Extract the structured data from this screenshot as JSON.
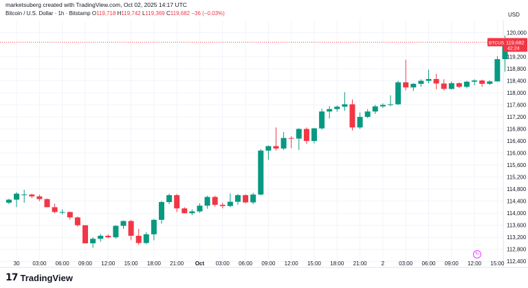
{
  "caption": "marketsuberg created with TradingView.com, Oct 02, 2025 14:17 UTC",
  "legend": {
    "title": "Bitcoin / U.S. Dollar · 1h · Bitstamp",
    "o_label": "O",
    "o_value": "119,718",
    "h_label": "H",
    "h_value": "119,742",
    "l_label": "L",
    "l_value": "119,369",
    "c_label": "C",
    "c_value": "119,682",
    "change": "−36 (−0.03%)"
  },
  "currency": "USD",
  "price_tag": {
    "symbol": "BTCUSD",
    "price": "119,682",
    "countdown": "42:24"
  },
  "colors": {
    "up": "#089981",
    "down": "#f23645",
    "grid": "#f0f3fa",
    "axis_text": "#131722",
    "last_price_line": "#f23645"
  },
  "logo_text": "TradingView",
  "chart_data": {
    "type": "candlestick",
    "title": "Bitcoin / U.S. Dollar · 1h · Bitstamp",
    "ylim": [
      112200,
      120400
    ],
    "y_ticks": [
      112400,
      112800,
      113200,
      113600,
      114000,
      114400,
      114800,
      115200,
      115600,
      116000,
      116400,
      116800,
      117200,
      117600,
      118000,
      118400,
      118800,
      119200,
      120000
    ],
    "y_tick_labels": [
      "112,400",
      "112,800",
      "113,200",
      "113,600",
      "114,000",
      "114,400",
      "114,800",
      "115,200",
      "115,600",
      "116,000",
      "116,400",
      "116,800",
      "117,200",
      "117,600",
      "118,000",
      "118,400",
      "118,800",
      "119,200",
      "120,000"
    ],
    "x_tick_labels": [
      {
        "index": 1,
        "label": "30"
      },
      {
        "index": 4,
        "label": "03:00"
      },
      {
        "index": 7,
        "label": "06:00"
      },
      {
        "index": 10,
        "label": "09:00"
      },
      {
        "index": 13,
        "label": "12:00"
      },
      {
        "index": 16,
        "label": "15:00"
      },
      {
        "index": 19,
        "label": "18:00"
      },
      {
        "index": 22,
        "label": "21:00"
      },
      {
        "index": 25,
        "label": "Oct"
      },
      {
        "index": 28,
        "label": "03:00"
      },
      {
        "index": 31,
        "label": "06:00"
      },
      {
        "index": 34,
        "label": "09:00"
      },
      {
        "index": 37,
        "label": "12:00"
      },
      {
        "index": 40,
        "label": "15:00"
      },
      {
        "index": 43,
        "label": "18:00"
      },
      {
        "index": 46,
        "label": "21:00"
      },
      {
        "index": 49,
        "label": "2"
      },
      {
        "index": 52,
        "label": "03:00"
      },
      {
        "index": 55,
        "label": "06:00"
      },
      {
        "index": 58,
        "label": "09:00"
      },
      {
        "index": 61,
        "label": "12:00"
      },
      {
        "index": 64,
        "label": "15:00"
      }
    ],
    "last_price": 119682,
    "candles": [
      {
        "o": 114350,
        "h": 114480,
        "l": 114300,
        "c": 114450
      },
      {
        "o": 114450,
        "h": 114700,
        "l": 114200,
        "c": 114650
      },
      {
        "o": 114620,
        "h": 114780,
        "l": 114350,
        "c": 114620
      },
      {
        "o": 114620,
        "h": 114650,
        "l": 114500,
        "c": 114560
      },
      {
        "o": 114560,
        "h": 114620,
        "l": 114400,
        "c": 114470
      },
      {
        "o": 114470,
        "h": 114490,
        "l": 114200,
        "c": 114200
      },
      {
        "o": 114200,
        "h": 114320,
        "l": 114000,
        "c": 114040
      },
      {
        "o": 114040,
        "h": 114130,
        "l": 113960,
        "c": 114040
      },
      {
        "o": 114040,
        "h": 114050,
        "l": 113780,
        "c": 113860
      },
      {
        "o": 113860,
        "h": 113890,
        "l": 113550,
        "c": 113600
      },
      {
        "o": 113600,
        "h": 113600,
        "l": 113000,
        "c": 113000
      },
      {
        "o": 113000,
        "h": 113200,
        "l": 112850,
        "c": 113150
      },
      {
        "o": 113150,
        "h": 113310,
        "l": 113050,
        "c": 113250
      },
      {
        "o": 113250,
        "h": 113300,
        "l": 113170,
        "c": 113200
      },
      {
        "o": 113200,
        "h": 113600,
        "l": 113150,
        "c": 113580
      },
      {
        "o": 113580,
        "h": 113760,
        "l": 113480,
        "c": 113740
      },
      {
        "o": 113740,
        "h": 113780,
        "l": 113100,
        "c": 113250
      },
      {
        "o": 113250,
        "h": 113480,
        "l": 112950,
        "c": 113010
      },
      {
        "o": 113010,
        "h": 113370,
        "l": 112970,
        "c": 113300
      },
      {
        "o": 113300,
        "h": 113810,
        "l": 113100,
        "c": 113780
      },
      {
        "o": 113780,
        "h": 114410,
        "l": 113650,
        "c": 114370
      },
      {
        "o": 114370,
        "h": 114650,
        "l": 114300,
        "c": 114600
      },
      {
        "o": 114600,
        "h": 114640,
        "l": 114040,
        "c": 114160
      },
      {
        "o": 114160,
        "h": 114200,
        "l": 113990,
        "c": 114000
      },
      {
        "o": 114000,
        "h": 114130,
        "l": 113930,
        "c": 114060
      },
      {
        "o": 114060,
        "h": 114330,
        "l": 114020,
        "c": 114250
      },
      {
        "o": 114250,
        "h": 114580,
        "l": 114150,
        "c": 114540
      },
      {
        "o": 114540,
        "h": 114580,
        "l": 114220,
        "c": 114280
      },
      {
        "o": 114280,
        "h": 114350,
        "l": 114160,
        "c": 114240
      },
      {
        "o": 114240,
        "h": 114660,
        "l": 114200,
        "c": 114380
      },
      {
        "o": 114380,
        "h": 114640,
        "l": 114280,
        "c": 114600
      },
      {
        "o": 114600,
        "h": 114630,
        "l": 114320,
        "c": 114360
      },
      {
        "o": 114360,
        "h": 114680,
        "l": 114300,
        "c": 114620
      },
      {
        "o": 114620,
        "h": 116130,
        "l": 114590,
        "c": 116080
      },
      {
        "o": 116080,
        "h": 116250,
        "l": 115780,
        "c": 116230
      },
      {
        "o": 116230,
        "h": 116850,
        "l": 116080,
        "c": 116150
      },
      {
        "o": 116150,
        "h": 116700,
        "l": 116100,
        "c": 116500
      },
      {
        "o": 116500,
        "h": 116560,
        "l": 116160,
        "c": 116480
      },
      {
        "o": 116480,
        "h": 116830,
        "l": 116100,
        "c": 116800
      },
      {
        "o": 116800,
        "h": 116850,
        "l": 116300,
        "c": 116400
      },
      {
        "o": 116400,
        "h": 116840,
        "l": 116320,
        "c": 116820
      },
      {
        "o": 116820,
        "h": 117470,
        "l": 116780,
        "c": 117380
      },
      {
        "o": 117380,
        "h": 117560,
        "l": 117150,
        "c": 117460
      },
      {
        "o": 117460,
        "h": 117580,
        "l": 117370,
        "c": 117540
      },
      {
        "o": 117540,
        "h": 118020,
        "l": 117400,
        "c": 117620
      },
      {
        "o": 117620,
        "h": 117780,
        "l": 116750,
        "c": 116850
      },
      {
        "o": 116850,
        "h": 117350,
        "l": 116800,
        "c": 117200
      },
      {
        "o": 117200,
        "h": 117460,
        "l": 117160,
        "c": 117380
      },
      {
        "o": 117380,
        "h": 117600,
        "l": 117300,
        "c": 117550
      },
      {
        "o": 117550,
        "h": 117650,
        "l": 117500,
        "c": 117600
      },
      {
        "o": 117600,
        "h": 117920,
        "l": 117550,
        "c": 117620
      },
      {
        "o": 117620,
        "h": 118400,
        "l": 117600,
        "c": 118350
      },
      {
        "o": 118350,
        "h": 119100,
        "l": 118080,
        "c": 118180
      },
      {
        "o": 118180,
        "h": 118320,
        "l": 118060,
        "c": 118300
      },
      {
        "o": 118300,
        "h": 118450,
        "l": 118200,
        "c": 118400
      },
      {
        "o": 118400,
        "h": 118770,
        "l": 118320,
        "c": 118460
      },
      {
        "o": 118460,
        "h": 118630,
        "l": 118120,
        "c": 118310
      },
      {
        "o": 118310,
        "h": 118450,
        "l": 118080,
        "c": 118130
      },
      {
        "o": 118130,
        "h": 118380,
        "l": 118110,
        "c": 118320
      },
      {
        "o": 118320,
        "h": 118350,
        "l": 118160,
        "c": 118200
      },
      {
        "o": 118200,
        "h": 118400,
        "l": 118150,
        "c": 118370
      },
      {
        "o": 118370,
        "h": 118450,
        "l": 118250,
        "c": 118410
      },
      {
        "o": 118410,
        "h": 118440,
        "l": 118200,
        "c": 118300
      },
      {
        "o": 118300,
        "h": 118420,
        "l": 118260,
        "c": 118380
      },
      {
        "o": 118380,
        "h": 119220,
        "l": 118370,
        "c": 119120
      },
      {
        "o": 119120,
        "h": 119900,
        "l": 118700,
        "c": 119720
      },
      {
        "o": 119718,
        "h": 119742,
        "l": 119369,
        "c": 119682
      }
    ]
  }
}
